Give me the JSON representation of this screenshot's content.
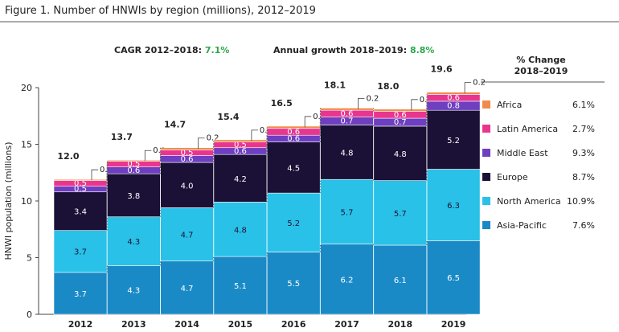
{
  "figure_title": "Figure 1. Number of HNWIs by region (millions), 2012–2019",
  "header": {
    "cagr_label": "CAGR 2012–2018: ",
    "cagr_value": "7.1%",
    "annual_label": "Annual growth 2018–2019: ",
    "annual_value": "8.8%",
    "pct_change_line1": "% Change",
    "pct_change_line2": "2018–2019"
  },
  "colors": {
    "Asia-Pacific": "#1a8ac6",
    "North America": "#29c1e8",
    "Europe": "#1b1136",
    "Middle East": "#6e3fc0",
    "Latin America": "#e8368f",
    "Africa": "#f08a4b",
    "header_green": "#2ba84a"
  },
  "legend": [
    {
      "name": "Africa",
      "change": "6.1%"
    },
    {
      "name": "Latin America",
      "change": "2.7%"
    },
    {
      "name": "Middle East",
      "change": "9.3%"
    },
    {
      "name": "Europe",
      "change": "8.7%"
    },
    {
      "name": "North America",
      "change": "10.9%"
    },
    {
      "name": "Asia-Pacific",
      "change": "7.6%"
    }
  ],
  "chart_data": {
    "type": "bar",
    "stacked": true,
    "title": "Figure 1. Number of HNWIs by region (millions), 2012–2019",
    "xlabel": "",
    "ylabel": "HNWI population (millions)",
    "ylim": [
      0,
      20
    ],
    "yticks": [
      0,
      5,
      10,
      15,
      20
    ],
    "categories": [
      "2012",
      "2013",
      "2014",
      "2015",
      "2016",
      "2017",
      "2018",
      "2019"
    ],
    "totals": [
      "12.0",
      "13.7",
      "14.7",
      "15.4",
      "16.5",
      "18.1",
      "18.0",
      "19.6"
    ],
    "series": [
      {
        "name": "Asia-Pacific",
        "values": [
          3.7,
          4.3,
          4.7,
          5.1,
          5.5,
          6.2,
          6.1,
          6.5
        ]
      },
      {
        "name": "North America",
        "values": [
          3.7,
          4.3,
          4.7,
          4.8,
          5.2,
          5.7,
          5.7,
          6.3
        ]
      },
      {
        "name": "Europe",
        "values": [
          3.4,
          3.8,
          4.0,
          4.2,
          4.5,
          4.8,
          4.8,
          5.2
        ]
      },
      {
        "name": "Middle East",
        "values": [
          0.5,
          0.6,
          0.6,
          0.6,
          0.6,
          0.7,
          0.7,
          0.8
        ]
      },
      {
        "name": "Latin America",
        "values": [
          0.5,
          0.5,
          0.5,
          0.5,
          0.6,
          0.6,
          0.6,
          0.6
        ]
      },
      {
        "name": "Africa",
        "values": [
          0.1,
          0.1,
          0.2,
          0.2,
          0.2,
          0.2,
          0.2,
          0.2
        ]
      }
    ],
    "grid": false,
    "legend_position": "right"
  }
}
